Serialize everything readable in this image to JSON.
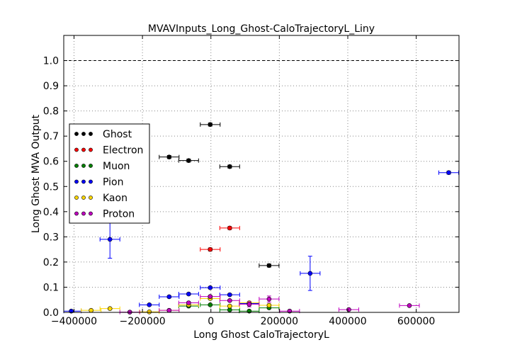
{
  "chart_data": {
    "type": "scatter",
    "title": "MVAVInputs_Long_Ghost-CaloTrajectoryL_Liny",
    "xlabel": "Long Ghost CaloTrajectoryL",
    "ylabel": "Long Ghost MVA Output",
    "xlim": [
      -430000,
      725000
    ],
    "ylim": [
      0.0,
      1.1
    ],
    "xticks": [
      -400000,
      -200000,
      0,
      200000,
      400000,
      600000
    ],
    "xtick_labels": [
      "−400000",
      "−200000",
      "0",
      "200000",
      "400000",
      "600000"
    ],
    "yticks": [
      0.0,
      0.1,
      0.2,
      0.3,
      0.4,
      0.5,
      0.6,
      0.7,
      0.8,
      0.9,
      1.0
    ],
    "ytick_labels": [
      "0.0",
      "0.1",
      "0.2",
      "0.3",
      "0.4",
      "0.5",
      "0.6",
      "0.7",
      "0.8",
      "0.9",
      "1.0"
    ],
    "grid": true,
    "reference_line_y": 1.0,
    "legend_position": "center-left",
    "series": [
      {
        "name": "Ghost",
        "color": "#000000",
        "points": [
          {
            "x": -122000,
            "y": 0.617,
            "xerr": 29000,
            "yerr": 0.006
          },
          {
            "x": -65000,
            "y": 0.603,
            "xerr": 29000,
            "yerr": 0.006
          },
          {
            "x": -2000,
            "y": 0.746,
            "xerr": 29000,
            "yerr": 0.006
          },
          {
            "x": 55000,
            "y": 0.579,
            "xerr": 29000,
            "yerr": 0.006
          },
          {
            "x": 170000,
            "y": 0.186,
            "xerr": 29000,
            "yerr": 0.006
          }
        ]
      },
      {
        "name": "Electron",
        "color": "#ff0000",
        "points": [
          {
            "x": -2000,
            "y": 0.25,
            "xerr": 29000,
            "yerr": 0.006
          },
          {
            "x": 55000,
            "y": 0.335,
            "xerr": 29000,
            "yerr": 0.006
          }
        ]
      },
      {
        "name": "Muon",
        "color": "#007f00",
        "points": [
          {
            "x": -65000,
            "y": 0.025,
            "xerr": 29000,
            "yerr": 0.003
          },
          {
            "x": -2000,
            "y": 0.03,
            "xerr": 29000,
            "yerr": 0.003
          },
          {
            "x": 55000,
            "y": 0.01,
            "xerr": 29000,
            "yerr": 0.003
          },
          {
            "x": 112000,
            "y": 0.005,
            "xerr": 29000,
            "yerr": 0.003
          },
          {
            "x": 170000,
            "y": 0.018,
            "xerr": 29000,
            "yerr": 0.003
          }
        ]
      },
      {
        "name": "Pion",
        "color": "#0000ff",
        "points": [
          {
            "x": -408000,
            "y": 0.005,
            "xerr": 29000,
            "yerr": 0.003
          },
          {
            "x": -295000,
            "y": 0.29,
            "xerr": 29000,
            "yerr": 0.075
          },
          {
            "x": -180000,
            "y": 0.03,
            "xerr": 29000,
            "yerr": 0.004
          },
          {
            "x": -122000,
            "y": 0.062,
            "xerr": 29000,
            "yerr": 0.004
          },
          {
            "x": -65000,
            "y": 0.073,
            "xerr": 29000,
            "yerr": 0.004
          },
          {
            "x": -2000,
            "y": 0.098,
            "xerr": 29000,
            "yerr": 0.004
          },
          {
            "x": 55000,
            "y": 0.07,
            "xerr": 29000,
            "yerr": 0.004
          },
          {
            "x": 112000,
            "y": 0.035,
            "xerr": 29000,
            "yerr": 0.006
          },
          {
            "x": 290000,
            "y": 0.155,
            "xerr": 29000,
            "yerr": 0.068
          },
          {
            "x": 695000,
            "y": 0.555,
            "xerr": 29000,
            "yerr": 0.006
          }
        ]
      },
      {
        "name": "Kaon",
        "color": "#ffd700",
        "points": [
          {
            "x": -350000,
            "y": 0.008,
            "xerr": 29000,
            "yerr": 0.003
          },
          {
            "x": -295000,
            "y": 0.015,
            "xerr": 29000,
            "yerr": 0.003
          },
          {
            "x": -180000,
            "y": 0.002,
            "xerr": 29000,
            "yerr": 0.002
          },
          {
            "x": -122000,
            "y": 0.008,
            "xerr": 29000,
            "yerr": 0.003
          },
          {
            "x": -65000,
            "y": 0.03,
            "xerr": 29000,
            "yerr": 0.003
          },
          {
            "x": -2000,
            "y": 0.055,
            "xerr": 29000,
            "yerr": 0.004
          },
          {
            "x": 55000,
            "y": 0.025,
            "xerr": 29000,
            "yerr": 0.003
          },
          {
            "x": 112000,
            "y": 0.038,
            "xerr": 29000,
            "yerr": 0.006
          },
          {
            "x": 170000,
            "y": 0.028,
            "xerr": 29000,
            "yerr": 0.006
          }
        ]
      },
      {
        "name": "Proton",
        "color": "#bf00bf",
        "points": [
          {
            "x": -237000,
            "y": 0.001,
            "xerr": 29000,
            "yerr": 0.002
          },
          {
            "x": -122000,
            "y": 0.008,
            "xerr": 29000,
            "yerr": 0.003
          },
          {
            "x": -65000,
            "y": 0.038,
            "xerr": 29000,
            "yerr": 0.004
          },
          {
            "x": -2000,
            "y": 0.063,
            "xerr": 29000,
            "yerr": 0.004
          },
          {
            "x": 55000,
            "y": 0.047,
            "xerr": 29000,
            "yerr": 0.004
          },
          {
            "x": 112000,
            "y": 0.032,
            "xerr": 29000,
            "yerr": 0.01
          },
          {
            "x": 170000,
            "y": 0.053,
            "xerr": 29000,
            "yerr": 0.012
          },
          {
            "x": 230000,
            "y": 0.005,
            "xerr": 29000,
            "yerr": 0.003
          },
          {
            "x": 403000,
            "y": 0.011,
            "xerr": 29000,
            "yerr": 0.003
          },
          {
            "x": 580000,
            "y": 0.027,
            "xerr": 29000,
            "yerr": 0.003
          }
        ]
      }
    ]
  }
}
